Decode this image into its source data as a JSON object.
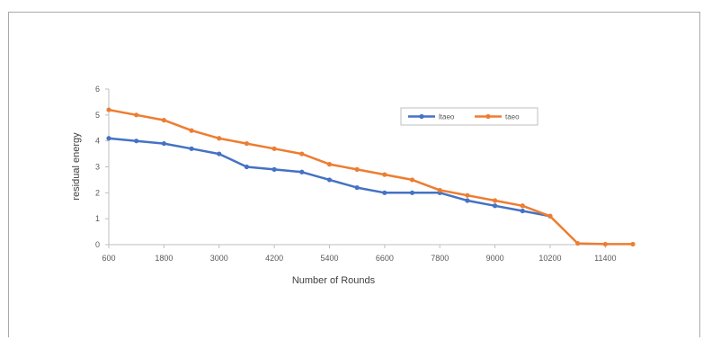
{
  "chart_data": {
    "type": "line",
    "title": "",
    "xlabel": "Number of Rounds",
    "ylabel": "residual energy",
    "x_tick_labels": [
      "600",
      "1800",
      "3000",
      "4200",
      "5400",
      "6600",
      "7800",
      "9000",
      "10200",
      "11400"
    ],
    "ylim": [
      0,
      6
    ],
    "yticks": [
      0,
      1,
      2,
      3,
      4,
      5,
      6
    ],
    "grid": false,
    "legend": "top-right",
    "x": [
      600,
      1200,
      1800,
      2400,
      3000,
      3600,
      4200,
      4800,
      5400,
      6000,
      6600,
      7200,
      7800,
      8400,
      9000,
      9600,
      10200,
      10800,
      11400,
      12000
    ],
    "series": [
      {
        "name": "ltaeo",
        "color": "#4472c4",
        "values": [
          4.1,
          4.0,
          3.9,
          3.7,
          3.5,
          3.0,
          2.9,
          2.8,
          2.5,
          2.2,
          2.0,
          2.0,
          2.0,
          1.7,
          1.5,
          1.3,
          1.1,
          null,
          null,
          null
        ]
      },
      {
        "name": "taeo",
        "color": "#ed7d31",
        "values": [
          5.2,
          5.0,
          4.8,
          4.4,
          4.1,
          3.9,
          3.7,
          3.5,
          3.1,
          2.9,
          2.7,
          2.5,
          2.1,
          1.9,
          1.7,
          1.5,
          1.1,
          0.05,
          0.02,
          0.02
        ]
      }
    ]
  }
}
